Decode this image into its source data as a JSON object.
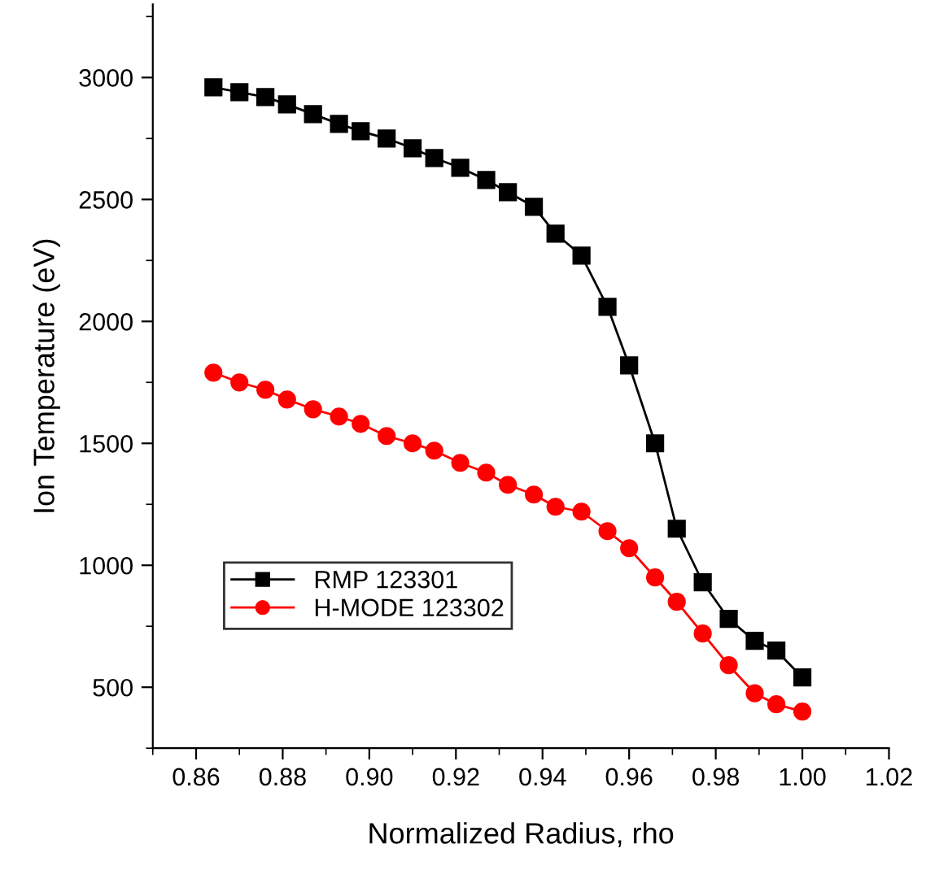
{
  "chart_data": {
    "type": "line",
    "xlabel": "Normalized Radius, rho",
    "ylabel": "Ion Temperature (eV)",
    "x": [
      0.864,
      0.87,
      0.876,
      0.881,
      0.887,
      0.893,
      0.898,
      0.904,
      0.91,
      0.915,
      0.921,
      0.927,
      0.932,
      0.938,
      0.943,
      0.949,
      0.955,
      0.96,
      0.966,
      0.971,
      0.977,
      0.983,
      0.989,
      0.994,
      1.0
    ],
    "series": [
      {
        "name": "RMP 123301",
        "color": "#000000",
        "marker": "square",
        "values": [
          2960,
          2940,
          2920,
          2890,
          2850,
          2810,
          2780,
          2750,
          2710,
          2670,
          2630,
          2580,
          2530,
          2470,
          2360,
          2270,
          2060,
          1820,
          1500,
          1150,
          930,
          780,
          690,
          650,
          540
        ]
      },
      {
        "name": "H-MODE 123302",
        "color": "#ff0000",
        "marker": "circle",
        "values": [
          1790,
          1750,
          1720,
          1680,
          1640,
          1610,
          1580,
          1530,
          1500,
          1470,
          1420,
          1380,
          1330,
          1290,
          1240,
          1220,
          1140,
          1070,
          950,
          850,
          720,
          590,
          475,
          430,
          400
        ]
      }
    ],
    "xlim": [
      0.85,
      1.02
    ],
    "xticks": [
      0.86,
      0.88,
      {
        "value": 0.9,
        "label": "0.90"
      },
      0.92,
      0.94,
      0.96,
      0.98,
      {
        "value": 1,
        "label": "1.00"
      },
      1.02
    ],
    "ylim": [
      250,
      3300
    ],
    "yticks": [
      500,
      1000,
      1500,
      2000,
      2500,
      3000
    ],
    "legend": "center left",
    "grid": false,
    "line_style": "solid"
  }
}
